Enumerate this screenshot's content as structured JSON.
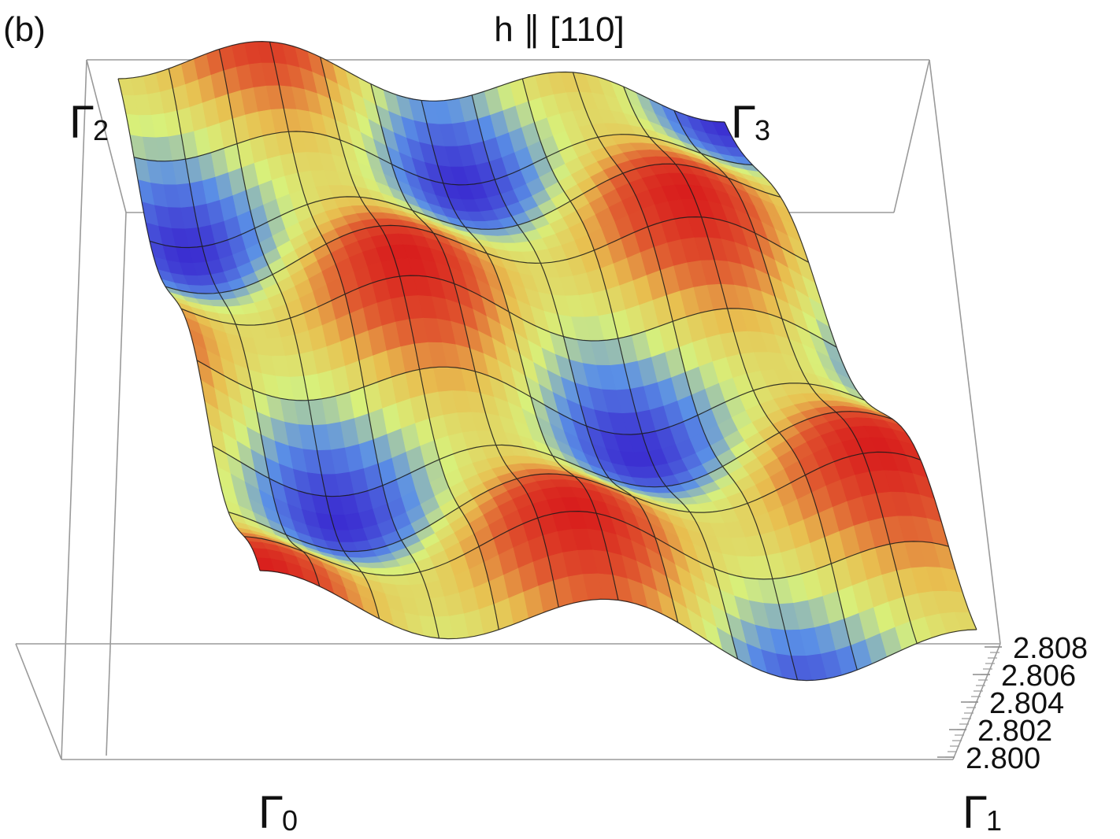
{
  "panel_label": "(b)",
  "title": "h ∥ [110]",
  "corner_labels": {
    "gamma_0": {
      "base": "Γ",
      "sub": "0"
    },
    "gamma_1": {
      "base": "Γ",
      "sub": "1"
    },
    "gamma_2": {
      "base": "Γ",
      "sub": "2"
    },
    "gamma_3": {
      "base": "Γ",
      "sub": "3"
    }
  },
  "chart_data": {
    "type": "surface3d",
    "title": "h ∥ [110]",
    "zlabel": "",
    "z_tick_labels": [
      "2.808",
      "2.806",
      "2.804",
      "2.802",
      "2.800"
    ],
    "z_ticks": [
      2.808,
      2.806,
      2.804,
      2.802,
      2.8
    ],
    "zlim": [
      2.8,
      2.808
    ],
    "corners": [
      "Γ0",
      "Γ1",
      "Γ2",
      "Γ3"
    ],
    "colormap": [
      "#3a2bd0",
      "#5a8fe6",
      "#d8f07a",
      "#e8c050",
      "#e05a30",
      "#d81c1c"
    ],
    "grid_lines": true,
    "mesh_color": "#1a1a1a",
    "surface_profile": {
      "description_rows": 4,
      "row_peaks_per_period": 2,
      "z_min": 2.8,
      "z_max": 2.808
    }
  }
}
